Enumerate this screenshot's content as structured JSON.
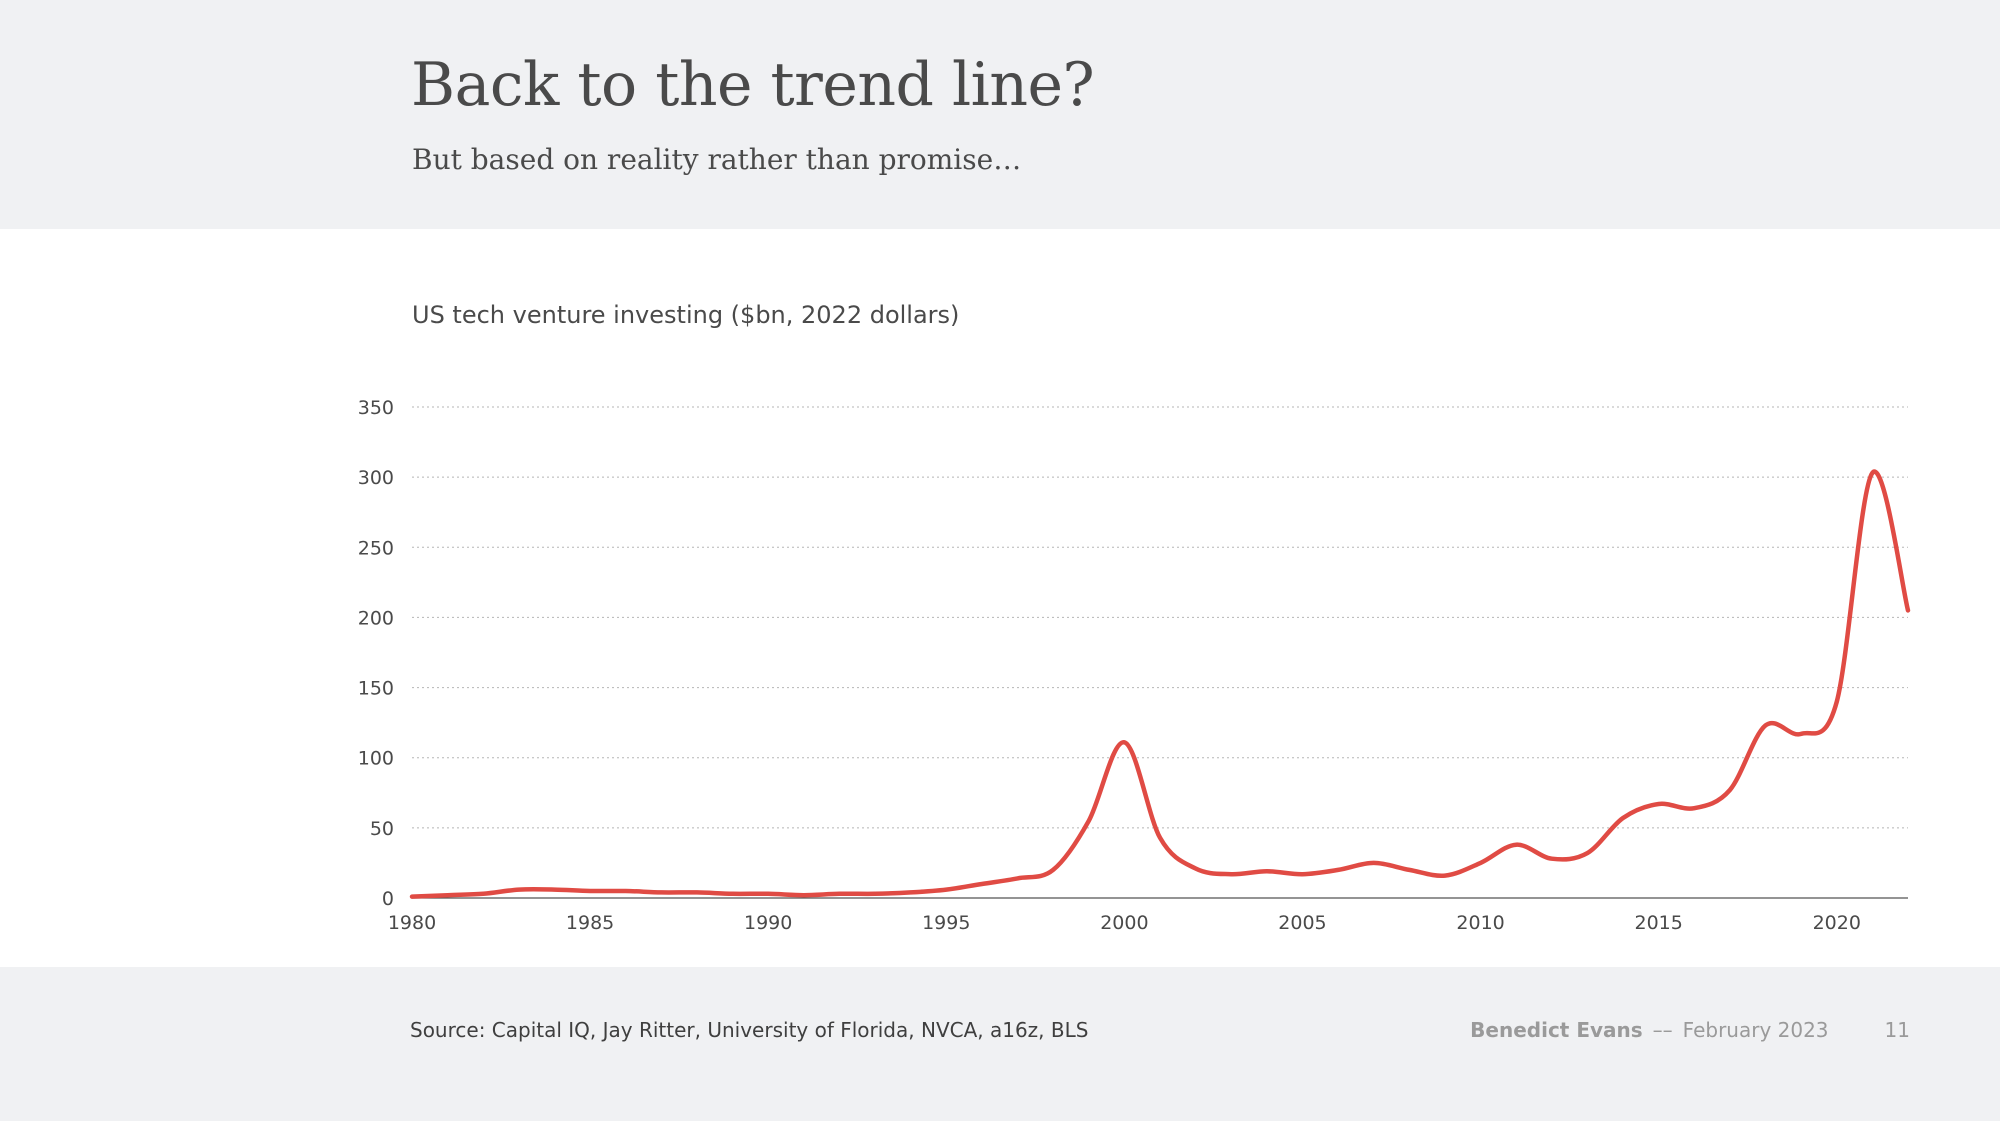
{
  "slide": {
    "title": "Back to the trend line?",
    "subtitle": "But based on reality rather than promise…"
  },
  "footer": {
    "source": "Source: Capital IQ, Jay Ritter, University of Florida, NVCA, a16z, BLS",
    "author": "Benedict Evans",
    "separator": "––",
    "date": "February 2023",
    "page_number": "11"
  },
  "colors": {
    "line": "#e04b44",
    "grid": "#b5b5b5",
    "axis": "#555555"
  },
  "chart_data": {
    "type": "line",
    "title": "US tech venture investing ($bn, 2022 dollars)",
    "xlabel": "",
    "ylabel": "",
    "xlim": [
      1980,
      2022
    ],
    "ylim": [
      0,
      350
    ],
    "x_ticks": [
      1980,
      1985,
      1990,
      1995,
      2000,
      2005,
      2010,
      2015,
      2020
    ],
    "y_ticks": [
      0,
      50,
      100,
      150,
      200,
      250,
      300,
      350
    ],
    "grid": "horizontal dotted",
    "legend": "none",
    "series": [
      {
        "x": [
          1980,
          1981,
          1982,
          1983,
          1984,
          1985,
          1986,
          1987,
          1988,
          1989,
          1990,
          1991,
          1992,
          1993,
          1994,
          1995,
          1996,
          1997,
          1998,
          1999,
          2000,
          2001,
          2002,
          2003,
          2004,
          2005,
          2006,
          2007,
          2008,
          2009,
          2010,
          2011,
          2012,
          2013,
          2014,
          2015,
          2016,
          2017,
          2018,
          2019,
          2020,
          2021,
          2022
        ],
        "values": [
          1,
          2,
          3,
          6,
          6,
          5,
          5,
          4,
          4,
          3,
          3,
          2,
          3,
          3,
          4,
          6,
          10,
          14,
          20,
          55,
          111,
          43,
          21,
          17,
          19,
          17,
          20,
          25,
          20,
          16,
          25,
          38,
          28,
          32,
          57,
          67,
          64,
          77,
          123,
          117,
          140,
          303,
          205
        ]
      }
    ]
  }
}
